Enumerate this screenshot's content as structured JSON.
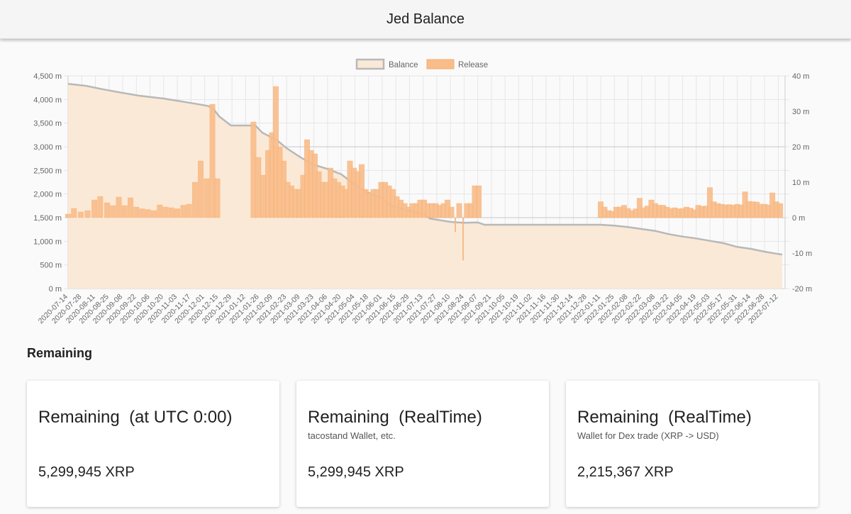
{
  "header": {
    "title": "Jed Balance"
  },
  "colors": {
    "balance_line": "#b8b8b8",
    "balance_fill": "#fbe9d7",
    "release_bar": "#f9bd8a",
    "release_border": "#f7ab6c"
  },
  "section": {
    "title": "Remaining"
  },
  "cards": [
    {
      "title": "Remaining  (at UTC 0:00)",
      "subtitle": "",
      "value": "5,299,945 XRP"
    },
    {
      "title": "Remaining  (RealTime)",
      "subtitle": "tacostand Wallet, etc.",
      "value": "5,299,945 XRP"
    },
    {
      "title": "Remaining  (RealTime)",
      "subtitle": "Wallet for Dex trade (XRP -> USD)",
      "value": "2,215,367 XRP"
    }
  ],
  "chart_data": {
    "type": "bar",
    "legend": {
      "position": "top",
      "items": [
        "Balance",
        "Release"
      ]
    },
    "x_tick_labels": [
      "2020-07-14",
      "2020-07-28",
      "2020-08-11",
      "2020-08-25",
      "2020-09-08",
      "2020-09-22",
      "2020-10-06",
      "2020-10-20",
      "2020-11-03",
      "2020-11-17",
      "2020-12-01",
      "2020-12-15",
      "2020-12-29",
      "2021-01-12",
      "2021-01-26",
      "2021-02-09",
      "2021-02-23",
      "2021-03-09",
      "2021-03-23",
      "2021-04-06",
      "2021-04-20",
      "2021-05-04",
      "2021-05-18",
      "2021-06-01",
      "2021-06-15",
      "2021-06-29",
      "2021-07-13",
      "2021-07-27",
      "2021-08-10",
      "2021-08-24",
      "2021-09-07",
      "2021-09-21",
      "2021-10-05",
      "2021-10-19",
      "2021-11-02",
      "2021-11-16",
      "2021-11-30",
      "2021-12-14",
      "2021-12-28",
      "2022-01-11",
      "2022-01-25",
      "2022-02-08",
      "2022-02-22",
      "2022-03-08",
      "2022-03-22",
      "2022-04-05",
      "2022-04-19",
      "2022-05-03",
      "2022-05-17",
      "2022-05-31",
      "2022-06-14",
      "2022-06-28",
      "2022-07-12"
    ],
    "y_left": {
      "min": 0,
      "max": 4500,
      "step": 500,
      "unit": " m",
      "ticks": [
        "0 m",
        "500 m",
        "1,000 m",
        "1,500 m",
        "2,000 m",
        "2,500 m",
        "3,000 m",
        "3,500 m",
        "4,000 m",
        "4,500 m"
      ]
    },
    "y_right": {
      "min": -20,
      "max": 40,
      "step": 10,
      "unit": " m",
      "ticks": [
        "-20 m",
        "-10 m",
        "0 m",
        "10 m",
        "20 m",
        "30 m",
        "40 m"
      ]
    },
    "grid": true,
    "series": [
      {
        "name": "Balance",
        "type": "area",
        "axis": "left",
        "points": [
          [
            "2020-07-14",
            4330
          ],
          [
            "2020-08-01",
            4290
          ],
          [
            "2020-08-20",
            4210
          ],
          [
            "2020-09-05",
            4150
          ],
          [
            "2020-09-25",
            4080
          ],
          [
            "2020-10-20",
            4020
          ],
          [
            "2020-11-10",
            3950
          ],
          [
            "2020-11-30",
            3880
          ],
          [
            "2020-12-05",
            3860
          ],
          [
            "2020-12-10",
            3800
          ],
          [
            "2020-12-16",
            3640
          ],
          [
            "2020-12-28",
            3450
          ],
          [
            "2021-01-22",
            3450
          ],
          [
            "2021-01-29",
            3300
          ],
          [
            "2021-02-13",
            3140
          ],
          [
            "2021-02-23",
            2970
          ],
          [
            "2021-03-09",
            2780
          ],
          [
            "2021-03-23",
            2620
          ],
          [
            "2021-04-06",
            2530
          ],
          [
            "2021-04-20",
            2420
          ],
          [
            "2021-05-04",
            2200
          ],
          [
            "2021-05-15",
            2050
          ],
          [
            "2021-06-01",
            1920
          ],
          [
            "2021-06-10",
            1750
          ],
          [
            "2021-06-29",
            1640
          ],
          [
            "2021-07-13",
            1590
          ],
          [
            "2021-07-20",
            1480
          ],
          [
            "2021-08-10",
            1410
          ],
          [
            "2021-08-24",
            1390
          ],
          [
            "2021-09-07",
            1400
          ],
          [
            "2021-09-14",
            1350
          ],
          [
            "2021-10-05",
            1350
          ],
          [
            "2021-11-16",
            1350
          ],
          [
            "2021-12-28",
            1350
          ],
          [
            "2022-01-11",
            1350
          ],
          [
            "2022-01-25",
            1330
          ],
          [
            "2022-02-08",
            1300
          ],
          [
            "2022-03-08",
            1220
          ],
          [
            "2022-03-22",
            1150
          ],
          [
            "2022-04-05",
            1100
          ],
          [
            "2022-04-19",
            1060
          ],
          [
            "2022-05-03",
            1010
          ],
          [
            "2022-05-17",
            960
          ],
          [
            "2022-05-31",
            880
          ],
          [
            "2022-06-14",
            840
          ],
          [
            "2022-06-28",
            780
          ],
          [
            "2022-07-12",
            730
          ],
          [
            "2022-07-16",
            720
          ]
        ]
      },
      {
        "name": "Release",
        "type": "bar",
        "axis": "right",
        "points": [
          [
            "2020-07-14",
            1
          ],
          [
            "2020-07-20",
            2.6
          ],
          [
            "2020-07-27",
            1.6
          ],
          [
            "2020-08-03",
            2
          ],
          [
            "2020-08-10",
            5
          ],
          [
            "2020-08-16",
            6
          ],
          [
            "2020-08-23",
            4.2
          ],
          [
            "2020-08-29",
            3.4
          ],
          [
            "2020-09-04",
            5.8
          ],
          [
            "2020-09-10",
            3.4
          ],
          [
            "2020-09-16",
            5.6
          ],
          [
            "2020-09-22",
            3
          ],
          [
            "2020-09-28",
            2.5
          ],
          [
            "2020-10-04",
            2.3
          ],
          [
            "2020-10-10",
            2
          ],
          [
            "2020-10-16",
            3.6
          ],
          [
            "2020-10-22",
            3
          ],
          [
            "2020-10-28",
            2.8
          ],
          [
            "2020-11-03",
            2.5
          ],
          [
            "2020-11-09",
            3.5
          ],
          [
            "2020-11-15",
            3.8
          ],
          [
            "2020-11-21",
            10
          ],
          [
            "2020-11-27",
            16
          ],
          [
            "2020-12-03",
            11
          ],
          [
            "2020-12-09",
            32
          ],
          [
            "2020-12-14",
            11
          ],
          [
            "2021-01-20",
            27
          ],
          [
            "2021-01-25",
            17
          ],
          [
            "2021-01-30",
            12
          ],
          [
            "2021-02-04",
            19
          ],
          [
            "2021-02-08",
            24
          ],
          [
            "2021-02-12",
            37
          ],
          [
            "2021-02-16",
            20
          ],
          [
            "2021-02-20",
            16
          ],
          [
            "2021-02-24",
            10
          ],
          [
            "2021-02-28",
            9
          ],
          [
            "2021-03-04",
            8
          ],
          [
            "2021-03-08",
            8
          ],
          [
            "2021-03-12",
            12
          ],
          [
            "2021-03-16",
            22
          ],
          [
            "2021-03-20",
            19
          ],
          [
            "2021-03-24",
            18
          ],
          [
            "2021-03-28",
            13
          ],
          [
            "2021-04-01",
            10
          ],
          [
            "2021-04-05",
            10
          ],
          [
            "2021-04-09",
            14
          ],
          [
            "2021-04-13",
            11
          ],
          [
            "2021-04-17",
            10
          ],
          [
            "2021-04-21",
            9
          ],
          [
            "2021-04-25",
            8
          ],
          [
            "2021-04-29",
            16
          ],
          [
            "2021-05-03",
            14
          ],
          [
            "2021-05-07",
            13
          ],
          [
            "2021-05-11",
            15
          ],
          [
            "2021-05-15",
            8
          ],
          [
            "2021-05-19",
            7
          ],
          [
            "2021-05-23",
            8
          ],
          [
            "2021-05-27",
            8
          ],
          [
            "2021-05-31",
            10
          ],
          [
            "2021-06-04",
            10
          ],
          [
            "2021-06-08",
            9
          ],
          [
            "2021-06-12",
            8
          ],
          [
            "2021-06-16",
            6
          ],
          [
            "2021-06-20",
            5
          ],
          [
            "2021-06-24",
            4
          ],
          [
            "2021-06-28",
            3
          ],
          [
            "2021-07-02",
            4
          ],
          [
            "2021-07-06",
            4
          ],
          [
            "2021-07-10",
            5
          ],
          [
            "2021-07-14",
            5
          ],
          [
            "2021-07-18",
            4
          ],
          [
            "2021-07-22",
            4
          ],
          [
            "2021-07-26",
            4
          ],
          [
            "2021-07-30",
            3.5
          ],
          [
            "2021-08-03",
            4
          ],
          [
            "2021-08-07",
            5
          ],
          [
            "2021-08-11",
            3
          ],
          [
            "2021-08-15",
            -4
          ],
          [
            "2021-08-19",
            4
          ],
          [
            "2021-08-23",
            -12
          ],
          [
            "2021-08-27",
            4
          ],
          [
            "2021-08-31",
            4
          ],
          [
            "2021-09-04",
            9
          ],
          [
            "2021-09-08",
            9
          ],
          [
            "2022-01-11",
            4.5
          ],
          [
            "2022-01-15",
            3
          ],
          [
            "2022-01-19",
            2
          ],
          [
            "2022-01-23",
            1.8
          ],
          [
            "2022-01-27",
            3
          ],
          [
            "2022-01-31",
            3
          ],
          [
            "2022-02-04",
            3.5
          ],
          [
            "2022-02-08",
            2.6
          ],
          [
            "2022-02-12",
            2
          ],
          [
            "2022-02-16",
            2.5
          ],
          [
            "2022-02-20",
            5.5
          ],
          [
            "2022-02-24",
            2.8
          ],
          [
            "2022-02-28",
            3.3
          ],
          [
            "2022-03-04",
            5
          ],
          [
            "2022-03-08",
            4
          ],
          [
            "2022-03-12",
            3.5
          ],
          [
            "2022-03-16",
            3.5
          ],
          [
            "2022-03-20",
            3
          ],
          [
            "2022-03-24",
            2.6
          ],
          [
            "2022-03-28",
            2.8
          ],
          [
            "2022-04-01",
            2.5
          ],
          [
            "2022-04-05",
            2.6
          ],
          [
            "2022-04-09",
            3
          ],
          [
            "2022-04-13",
            2.7
          ],
          [
            "2022-04-17",
            2.2
          ],
          [
            "2022-04-21",
            3.5
          ],
          [
            "2022-04-25",
            3.2
          ],
          [
            "2022-04-29",
            3.3
          ],
          [
            "2022-05-03",
            8.5
          ],
          [
            "2022-05-07",
            4.5
          ],
          [
            "2022-05-11",
            4
          ],
          [
            "2022-05-15",
            3.8
          ],
          [
            "2022-05-19",
            3.6
          ],
          [
            "2022-05-23",
            3.7
          ],
          [
            "2022-05-27",
            3.5
          ],
          [
            "2022-05-31",
            3.8
          ],
          [
            "2022-06-04",
            3.6
          ],
          [
            "2022-06-08",
            7.3
          ],
          [
            "2022-06-12",
            4.6
          ],
          [
            "2022-06-16",
            4.5
          ],
          [
            "2022-06-20",
            4.4
          ],
          [
            "2022-06-24",
            3.8
          ],
          [
            "2022-06-28",
            3.8
          ],
          [
            "2022-07-02",
            3.6
          ],
          [
            "2022-07-06",
            7
          ],
          [
            "2022-07-10",
            4.5
          ],
          [
            "2022-07-14",
            4
          ]
        ]
      }
    ]
  }
}
